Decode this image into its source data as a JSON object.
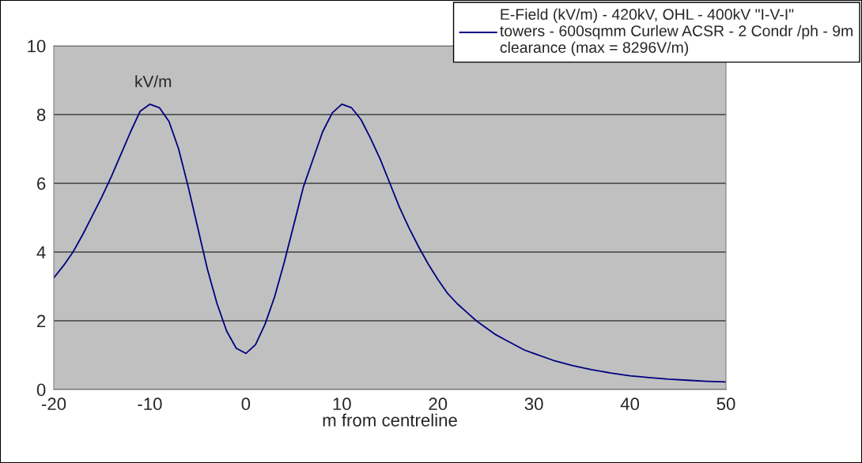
{
  "chart_data": {
    "type": "line",
    "xlabel": "m from centreline",
    "ylabel": "kV/m",
    "x": [
      -20,
      -19,
      -18,
      -17,
      -16,
      -15,
      -14,
      -13,
      -12,
      -11,
      -10,
      -9,
      -8,
      -7,
      -6,
      -5,
      -4,
      -3,
      -2,
      -1,
      0,
      1,
      2,
      3,
      4,
      5,
      6,
      7,
      8,
      9,
      10,
      11,
      12,
      13,
      14,
      15,
      16,
      17,
      18,
      19,
      20,
      21,
      22,
      23,
      24,
      25,
      26,
      27,
      28,
      29,
      30,
      32,
      34,
      36,
      38,
      40,
      42,
      44,
      46,
      48,
      50
    ],
    "series": [
      {
        "name": "E-Field (kV/m) - 420kV, OHL - 400kV \"I-V-I\" towers - 600sqmm Curlew ACSR - 2 Condr /ph - 9m clearance (max = 8296V/m)",
        "color": "#000080",
        "values": [
          3.25,
          3.6,
          4.0,
          4.5,
          5.05,
          5.6,
          6.2,
          6.85,
          7.5,
          8.1,
          8.3,
          8.2,
          7.8,
          7.0,
          5.9,
          4.7,
          3.5,
          2.5,
          1.7,
          1.2,
          1.05,
          1.3,
          1.9,
          2.7,
          3.7,
          4.8,
          5.9,
          6.7,
          7.5,
          8.05,
          8.3,
          8.2,
          7.85,
          7.3,
          6.7,
          6.0,
          5.3,
          4.7,
          4.15,
          3.65,
          3.2,
          2.8,
          2.5,
          2.25,
          2.0,
          1.8,
          1.6,
          1.45,
          1.3,
          1.15,
          1.05,
          0.85,
          0.7,
          0.58,
          0.48,
          0.4,
          0.35,
          0.3,
          0.27,
          0.24,
          0.22
        ]
      }
    ],
    "xlim": [
      -20,
      50
    ],
    "xticks": [
      -20,
      -10,
      0,
      10,
      20,
      30,
      40,
      50
    ],
    "ylim": [
      0,
      10
    ],
    "yticks": [
      0,
      2,
      4,
      6,
      8,
      10
    ],
    "grid": "y",
    "legend": "top right",
    "marker": "none",
    "line_style": "solid"
  }
}
